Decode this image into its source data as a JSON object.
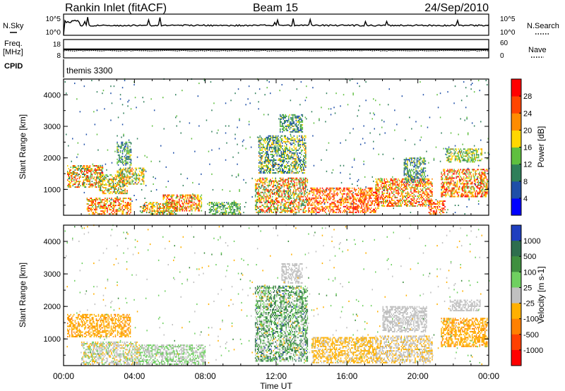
{
  "header": {
    "station": "Rankin Inlet (fitACF)",
    "beam": "Beam 15",
    "date": "24/Sep/2010"
  },
  "noise_panel": {
    "left_label": "N.Sky",
    "right_label": "N.Search",
    "left_ticks": [
      "10^5",
      "10^0"
    ],
    "right_ticks": [
      "10^5",
      "10^0"
    ]
  },
  "freq_panel": {
    "left_label_1": "Freq.",
    "left_label_2": "[MHz]",
    "right_label": "Nave",
    "left_ticks": [
      "18",
      "8"
    ],
    "right_ticks": [
      "60",
      "0"
    ]
  },
  "cpid": {
    "label": "CPID",
    "value": "themis 3300"
  },
  "x_axis": {
    "title": "Time UT",
    "ticks": [
      "00:00",
      "04:00",
      "08:00",
      "12:00",
      "16:00",
      "20:00",
      "00:00"
    ]
  },
  "chart_data": [
    {
      "type": "heatmap",
      "name": "power-panel",
      "ylabel": "Slant Range [km]",
      "yticks": [
        1000,
        2000,
        3000,
        4000
      ],
      "ylim": [
        180,
        4500
      ],
      "xlim_hours": [
        0,
        24
      ],
      "colorbar": {
        "label": "Power [dB]",
        "ticks": [
          "4",
          "8",
          "12",
          "16",
          "20",
          "24",
          "28"
        ],
        "colors": [
          "#0000ff",
          "#1f4fa8",
          "#2f7f5a",
          "#5fbf3f",
          "#ffd700",
          "#ff8c00",
          "#ff4500",
          "#ff0000"
        ],
        "range": [
          0,
          30
        ]
      },
      "blobs": [
        {
          "t": [
            0.2,
            2.2
          ],
          "r": [
            1050,
            1750
          ],
          "v": [
            8,
            28
          ]
        },
        {
          "t": [
            2.0,
            3.6
          ],
          "r": [
            850,
            1450
          ],
          "v": [
            8,
            24
          ]
        },
        {
          "t": [
            3.0,
            4.5
          ],
          "r": [
            1150,
            1650
          ],
          "v": [
            8,
            24
          ]
        },
        {
          "t": [
            1.3,
            3.8
          ],
          "r": [
            200,
            700
          ],
          "v": [
            12,
            28
          ]
        },
        {
          "t": [
            4.3,
            6.4
          ],
          "r": [
            200,
            600
          ],
          "v": [
            8,
            26
          ]
        },
        {
          "t": [
            5.6,
            7.8
          ],
          "r": [
            300,
            800
          ],
          "v": [
            12,
            28
          ]
        },
        {
          "t": [
            3.0,
            3.8
          ],
          "r": [
            1750,
            2500
          ],
          "v": [
            4,
            16
          ]
        },
        {
          "t": [
            10.8,
            13.8
          ],
          "r": [
            250,
            1350
          ],
          "v": [
            8,
            28
          ]
        },
        {
          "t": [
            11.0,
            13.7
          ],
          "r": [
            1500,
            2700
          ],
          "v": [
            4,
            20
          ]
        },
        {
          "t": [
            12.2,
            13.5
          ],
          "r": [
            2800,
            3350
          ],
          "v": [
            4,
            16
          ]
        },
        {
          "t": [
            13.8,
            17.8
          ],
          "r": [
            250,
            1050
          ],
          "v": [
            16,
            30
          ]
        },
        {
          "t": [
            17.6,
            20.8
          ],
          "r": [
            450,
            1350
          ],
          "v": [
            12,
            30
          ]
        },
        {
          "t": [
            19.2,
            20.4
          ],
          "r": [
            1200,
            2000
          ],
          "v": [
            4,
            16
          ]
        },
        {
          "t": [
            20.6,
            21.5
          ],
          "r": [
            200,
            650
          ],
          "v": [
            16,
            30
          ]
        },
        {
          "t": [
            21.3,
            23.9
          ],
          "r": [
            750,
            1650
          ],
          "v": [
            12,
            30
          ]
        },
        {
          "t": [
            21.6,
            23.6
          ],
          "r": [
            1850,
            2300
          ],
          "v": [
            8,
            20
          ]
        },
        {
          "t": [
            8.2,
            10.0
          ],
          "r": [
            200,
            600
          ],
          "v": [
            8,
            16
          ]
        },
        {
          "t": [
            0.0,
            24.0
          ],
          "r": [
            200,
            4500
          ],
          "v": [
            4,
            14
          ],
          "sparse": true
        }
      ]
    },
    {
      "type": "heatmap",
      "name": "velocity-panel",
      "ylabel": "Slant Range [km]",
      "yticks": [
        1000,
        2000,
        3000,
        4000
      ],
      "ylim": [
        180,
        4500
      ],
      "xlim_hours": [
        0,
        24
      ],
      "colorbar": {
        "label": "Velocity [m s-1]",
        "ticks": [
          "1000",
          "500",
          "100",
          "25",
          "-25",
          "-100",
          "-500",
          "-1000"
        ],
        "colors": [
          "#1f3fbf",
          "#2e6e4e",
          "#3f8f3f",
          "#6fd060",
          "#c0c0c0",
          "#ffb000",
          "#ff8000",
          "#ff4000",
          "#ff0000"
        ],
        "range": [
          -1000,
          1000
        ]
      },
      "blobs": [
        {
          "t": [
            0.2,
            3.8
          ],
          "r": [
            1050,
            1750
          ],
          "v": [
            -400,
            -150
          ]
        },
        {
          "t": [
            1.0,
            4.3
          ],
          "r": [
            200,
            900
          ],
          "v": [
            -200,
            200
          ]
        },
        {
          "t": [
            4.3,
            8.0
          ],
          "r": [
            200,
            800
          ],
          "v": [
            -100,
            300
          ]
        },
        {
          "t": [
            10.8,
            13.8
          ],
          "r": [
            300,
            2600
          ],
          "v": [
            -150,
            800
          ]
        },
        {
          "t": [
            12.3,
            13.5
          ],
          "r": [
            2700,
            3300
          ],
          "v": [
            -30,
            30
          ]
        },
        {
          "t": [
            14.0,
            17.7
          ],
          "r": [
            250,
            1050
          ],
          "v": [
            -200,
            -80
          ]
        },
        {
          "t": [
            17.6,
            20.8
          ],
          "r": [
            250,
            1100
          ],
          "v": [
            -200,
            50
          ]
        },
        {
          "t": [
            21.3,
            23.9
          ],
          "r": [
            750,
            1650
          ],
          "v": [
            -400,
            -150
          ]
        },
        {
          "t": [
            21.8,
            23.5
          ],
          "r": [
            1850,
            2200
          ],
          "v": [
            -30,
            30
          ]
        },
        {
          "t": [
            18.0,
            20.5
          ],
          "r": [
            1200,
            2000
          ],
          "v": [
            -30,
            30
          ]
        },
        {
          "t": [
            0.0,
            24.0
          ],
          "r": [
            200,
            4500
          ],
          "v": [
            -300,
            400
          ],
          "sparse": true
        }
      ]
    }
  ],
  "colors": {
    "frame": "#000000",
    "background": "#ffffff"
  }
}
